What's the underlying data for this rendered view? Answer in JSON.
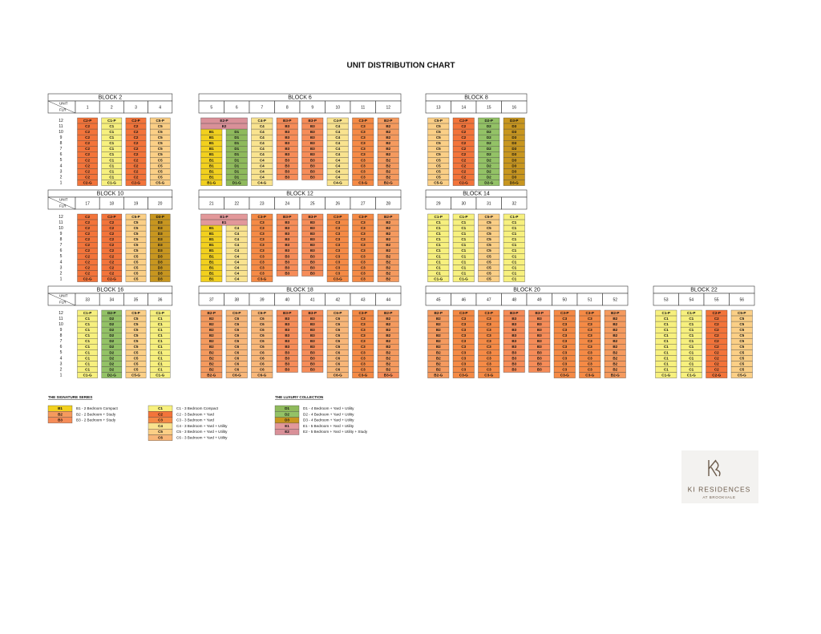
{
  "title": "UNIT DISTRIBUTION CHART",
  "header_labels": {
    "unit": "UNIT",
    "floor": "FLR"
  },
  "floors": [
    12,
    11,
    10,
    9,
    8,
    7,
    6,
    5,
    4,
    3,
    2,
    1
  ],
  "blocks": [
    {
      "name": "BLOCK 2",
      "stacks": [
        1,
        2,
        3,
        4
      ],
      "rows": [
        [
          "C2-P",
          "C1-P",
          "C2-P",
          "C5-P"
        ],
        [
          "C2",
          "C1",
          "C2",
          "C5"
        ],
        [
          "C2",
          "C1",
          "C2",
          "C5"
        ],
        [
          "C2",
          "C1",
          "C2",
          "C5"
        ],
        [
          "C2",
          "C1",
          "C2",
          "C5"
        ],
        [
          "C2",
          "C1",
          "C2",
          "C5"
        ],
        [
          "C2",
          "C1",
          "C2",
          "C5"
        ],
        [
          "C2",
          "C1",
          "C2",
          "C5"
        ],
        [
          "C2",
          "C1",
          "C2",
          "C5"
        ],
        [
          "C2",
          "C1",
          "C2",
          "C5"
        ],
        [
          "C2",
          "C1",
          "C2",
          "C5"
        ],
        [
          "C2-G",
          "C1-G",
          "C2-G",
          "C5-G"
        ]
      ]
    },
    {
      "name": "BLOCK 6",
      "stacks": [
        5,
        6,
        7,
        8,
        9,
        10,
        11,
        12
      ],
      "rows": [
        [
          {
            "label": "E2-P",
            "span": 2
          },
          "C4-P",
          "B3-P",
          "B3-P",
          "C4-P",
          "C3-P",
          "B2-P"
        ],
        [
          {
            "label": "E2",
            "span": 2
          },
          "C4",
          "B3",
          "B3",
          "C4",
          "C3",
          "B2"
        ],
        [
          "B1",
          "D1",
          "C4",
          "B3",
          "B3",
          "C4",
          "C3",
          "B2"
        ],
        [
          "B1",
          "D1",
          "C4",
          "B3",
          "B3",
          "C4",
          "C3",
          "B2"
        ],
        [
          "B1",
          "D1",
          "C4",
          "B3",
          "B3",
          "C4",
          "C3",
          "B2"
        ],
        [
          "B1",
          "D1",
          "C4",
          "B3",
          "B3",
          "C4",
          "C3",
          "B2"
        ],
        [
          "B1",
          "D1",
          "C4",
          "B3",
          "B3",
          "C4",
          "C3",
          "B2"
        ],
        [
          "B1",
          "D1",
          "C4",
          "B3",
          "B3",
          "C4",
          "C3",
          "B2"
        ],
        [
          "B1",
          "D1",
          "C4",
          "B3",
          "B3",
          "C4",
          "C3",
          "B2"
        ],
        [
          "B1",
          "D1",
          "C4",
          "B3",
          "B3",
          "C4",
          "C3",
          "B2"
        ],
        [
          "B1",
          "D1",
          "C4",
          "B3",
          "B3",
          "C4",
          "C3",
          "B2"
        ],
        [
          "B1-G",
          "D1-G",
          "C4-G",
          null,
          null,
          "C4-G",
          "C3-G",
          "B2-G"
        ]
      ]
    },
    {
      "name": "BLOCK 8",
      "stacks": [
        13,
        14,
        15,
        16
      ],
      "rows": [
        [
          "C5-P",
          "C2-P",
          "D2-P",
          "D3-P"
        ],
        [
          "C5",
          "C2",
          "D2",
          "D3"
        ],
        [
          "C5",
          "C2",
          "D2",
          "D3"
        ],
        [
          "C5",
          "C2",
          "D2",
          "D3"
        ],
        [
          "C5",
          "C2",
          "D2",
          "D3"
        ],
        [
          "C5",
          "C2",
          "D2",
          "D3"
        ],
        [
          "C5",
          "C2",
          "D2",
          "D3"
        ],
        [
          "C5",
          "C2",
          "D2",
          "D3"
        ],
        [
          "C5",
          "C2",
          "D2",
          "D3"
        ],
        [
          "C5",
          "C2",
          "D2",
          "D3"
        ],
        [
          "C5",
          "C2",
          "D2",
          "D3"
        ],
        [
          "C5-G",
          "C2-G",
          "D2-G",
          "D3-G"
        ]
      ]
    },
    {
      "name": "BLOCK 10",
      "stacks": [
        17,
        18,
        19,
        20
      ],
      "rows": [
        [
          "C2",
          "C2-P",
          "C5-P",
          "D3-P"
        ],
        [
          "C2",
          "C2",
          "C5",
          "D3"
        ],
        [
          "C2",
          "C2",
          "C5",
          "D3"
        ],
        [
          "C2",
          "C2",
          "C5",
          "D3"
        ],
        [
          "C2",
          "C2",
          "C5",
          "D3"
        ],
        [
          "C2",
          "C2",
          "C5",
          "D3"
        ],
        [
          "C2",
          "C2",
          "C5",
          "D3"
        ],
        [
          "C2",
          "C2",
          "C5",
          "D3"
        ],
        [
          "C2",
          "C2",
          "C5",
          "D3"
        ],
        [
          "C2",
          "C2",
          "C5",
          "D3"
        ],
        [
          "C2",
          "C2",
          "C5",
          "D3"
        ],
        [
          "C2-G",
          "C2-G",
          "C5",
          "D3"
        ]
      ]
    },
    {
      "name": "BLOCK 12",
      "stacks": [
        21,
        22,
        23,
        24,
        25,
        26,
        27,
        28
      ],
      "rows": [
        [
          {
            "label": "E1-P",
            "span": 2
          },
          "C3-P",
          "B3-P",
          "B3-P",
          "C3-P",
          "C3-P",
          "B2-P"
        ],
        [
          {
            "label": "E1",
            "span": 2
          },
          "C3",
          "B3",
          "B3",
          "C3",
          "C3",
          "B2"
        ],
        [
          "B1",
          "C4",
          "C3",
          "B3",
          "B3",
          "C3",
          "C3",
          "B2"
        ],
        [
          "B1",
          "C4",
          "C3",
          "B3",
          "B3",
          "C3",
          "C3",
          "B2"
        ],
        [
          "B1",
          "C4",
          "C3",
          "B3",
          "B3",
          "C3",
          "C3",
          "B2"
        ],
        [
          "B1",
          "C4",
          "C3",
          "B3",
          "B3",
          "C3",
          "C3",
          "B2"
        ],
        [
          "B1",
          "C4",
          "C3",
          "B3",
          "B3",
          "C3",
          "C3",
          "B2"
        ],
        [
          "B1",
          "C4",
          "C3",
          "B3",
          "B3",
          "C3",
          "C3",
          "B2"
        ],
        [
          "B1",
          "C4",
          "C3",
          "B3",
          "B3",
          "C3",
          "C3",
          "B2"
        ],
        [
          "B1",
          "C4",
          "C3",
          "B3",
          "B3",
          "C3",
          "C3",
          "B2"
        ],
        [
          "B1",
          "C4",
          "C3",
          "B3",
          "B3",
          "C3",
          "C3",
          "B2"
        ],
        [
          "B1",
          "C4",
          "C3-G",
          null,
          null,
          "C3-G",
          "C3",
          "B2"
        ]
      ]
    },
    {
      "name": "BLOCK 14",
      "stacks": [
        29,
        30,
        31,
        32
      ],
      "rows": [
        [
          "C1-P",
          "C1-P",
          "C5-P",
          "C1-P"
        ],
        [
          "C1",
          "C1",
          "C5",
          "C1"
        ],
        [
          "C1",
          "C1",
          "C5",
          "C1"
        ],
        [
          "C1",
          "C1",
          "C5",
          "C1"
        ],
        [
          "C1",
          "C1",
          "C5",
          "C1"
        ],
        [
          "C1",
          "C1",
          "C5",
          "C1"
        ],
        [
          "C1",
          "C1",
          "C5",
          "C1"
        ],
        [
          "C1",
          "C1",
          "C5",
          "C1"
        ],
        [
          "C1",
          "C1",
          "C5",
          "C1"
        ],
        [
          "C1",
          "C1",
          "C5",
          "C1"
        ],
        [
          "C1",
          "C1",
          "C5",
          "C1"
        ],
        [
          "C1-G",
          "C1-G",
          "C5",
          "C1"
        ]
      ]
    },
    {
      "name": "BLOCK 16",
      "stacks": [
        33,
        34,
        35,
        36
      ],
      "rows": [
        [
          "C1-P",
          "D2-P",
          "C5-P",
          "C1-P"
        ],
        [
          "C1",
          "D2",
          "C5",
          "C1"
        ],
        [
          "C1",
          "D2",
          "C5",
          "C1"
        ],
        [
          "C1",
          "D2",
          "C5",
          "C1"
        ],
        [
          "C1",
          "D2",
          "C5",
          "C1"
        ],
        [
          "C1",
          "D2",
          "C5",
          "C1"
        ],
        [
          "C1",
          "D2",
          "C5",
          "C1"
        ],
        [
          "C1",
          "D2",
          "C5",
          "C1"
        ],
        [
          "C1",
          "D2",
          "C5",
          "C1"
        ],
        [
          "C1",
          "D2",
          "C5",
          "C1"
        ],
        [
          "C1",
          "D2",
          "C5",
          "C1"
        ],
        [
          "C1-G",
          "D2-G",
          "C5-G",
          "C1-G"
        ]
      ]
    },
    {
      "name": "BLOCK 18",
      "stacks": [
        37,
        38,
        39,
        40,
        41,
        42,
        43,
        44
      ],
      "rows": [
        [
          "B2-P",
          "C6-P",
          "C6-P",
          "B3-P",
          "B3-P",
          "C6-P",
          "C3-P",
          "B2-P"
        ],
        [
          "B2",
          "C6",
          "C6",
          "B3",
          "B3",
          "C6",
          "C3",
          "B2"
        ],
        [
          "B2",
          "C6",
          "C6",
          "B3",
          "B3",
          "C6",
          "C3",
          "B2"
        ],
        [
          "B2",
          "C6",
          "C6",
          "B3",
          "B3",
          "C6",
          "C3",
          "B2"
        ],
        [
          "B2",
          "C6",
          "C6",
          "B3",
          "B3",
          "C6",
          "C3",
          "B2"
        ],
        [
          "B2",
          "C6",
          "C6",
          "B3",
          "B3",
          "C6",
          "C3",
          "B2"
        ],
        [
          "B2",
          "C6",
          "C6",
          "B3",
          "B3",
          "C6",
          "C3",
          "B2"
        ],
        [
          "B2",
          "C6",
          "C6",
          "B3",
          "B3",
          "C6",
          "C3",
          "B2"
        ],
        [
          "B2",
          "C6",
          "C6",
          "B3",
          "B3",
          "C6",
          "C3",
          "B2"
        ],
        [
          "B2",
          "C6",
          "C6",
          "B3",
          "B3",
          "C6",
          "C3",
          "B2"
        ],
        [
          "B2",
          "C6",
          "C6",
          "B3",
          "B3",
          "C6",
          "C3",
          "B2"
        ],
        [
          "B2-G",
          "C6-G",
          "C6-G",
          null,
          null,
          "C6-G",
          "C3-G",
          "B3-G"
        ]
      ]
    },
    {
      "name": "BLOCK 20",
      "stacks": [
        45,
        46,
        47,
        48,
        49,
        50,
        51,
        52
      ],
      "rows": [
        [
          "B2-P",
          "C3-P",
          "C3-P",
          "B3-P",
          "B3-P",
          "C3-P",
          "C3-P",
          "B2-P"
        ],
        [
          "B2",
          "C3",
          "C3",
          "B3",
          "B3",
          "C3",
          "C3",
          "B2"
        ],
        [
          "B2",
          "C3",
          "C3",
          "B3",
          "B3",
          "C3",
          "C3",
          "B2"
        ],
        [
          "B2",
          "C3",
          "C3",
          "B3",
          "B3",
          "C3",
          "C3",
          "B2"
        ],
        [
          "B2",
          "C3",
          "C3",
          "B3",
          "B3",
          "C3",
          "C3",
          "B2"
        ],
        [
          "B2",
          "C3",
          "C3",
          "B3",
          "B3",
          "C3",
          "C3",
          "B2"
        ],
        [
          "B2",
          "C3",
          "C3",
          "B3",
          "B3",
          "C3",
          "C3",
          "B2"
        ],
        [
          "B2",
          "C3",
          "C3",
          "B3",
          "B3",
          "C3",
          "C3",
          "B2"
        ],
        [
          "B2",
          "C3",
          "C3",
          "B3",
          "B3",
          "C3",
          "C3",
          "B2"
        ],
        [
          "B2",
          "C3",
          "C3",
          "B3",
          "B3",
          "C3",
          "C3",
          "B2"
        ],
        [
          "B2",
          "C3",
          "C3",
          "B3",
          "B3",
          "C3",
          "C3",
          "B2"
        ],
        [
          "B2-G",
          "C3-G",
          "C3-G",
          null,
          null,
          "C3-G",
          "C3-G",
          "B2-G"
        ]
      ]
    },
    {
      "name": "BLOCK 22",
      "stacks": [
        53,
        54,
        55,
        56
      ],
      "rows": [
        [
          "C1-P",
          "C1-P",
          "C2-P",
          "C5-P"
        ],
        [
          "C1",
          "C1",
          "C2",
          "C5"
        ],
        [
          "C1",
          "C1",
          "C2",
          "C5"
        ],
        [
          "C1",
          "C1",
          "C2",
          "C5"
        ],
        [
          "C1",
          "C1",
          "C2",
          "C5"
        ],
        [
          "C1",
          "C1",
          "C2",
          "C5"
        ],
        [
          "C1",
          "C1",
          "C2",
          "C5"
        ],
        [
          "C1",
          "C1",
          "C2",
          "C5"
        ],
        [
          "C1",
          "C1",
          "C2",
          "C5"
        ],
        [
          "C1",
          "C1",
          "C2",
          "C5"
        ],
        [
          "C1",
          "C1",
          "C2",
          "C5"
        ],
        [
          "C1-G",
          "C1-G",
          "C2-G",
          "C5-G"
        ]
      ]
    }
  ],
  "legend": [
    {
      "title": "THE SIGNATURE SERIES",
      "groups": [
        [
          {
            "code": "B1",
            "description": "B1 - 2 Bedroom Compact",
            "color": "#f2d01e"
          },
          {
            "code": "B2",
            "description": "B2 - 2 Bedroom + Study",
            "color": "#f59a5e"
          },
          {
            "code": "B3",
            "description": "B3 - 2 Bedroom + Study",
            "color": "#f68c58"
          }
        ],
        [
          {
            "code": "C1",
            "description": "C1 - 3 Bedroom Compact",
            "color": "#f7f07e"
          },
          {
            "code": "C2",
            "description": "C2 - 3 Bedroom + Yard",
            "color": "#f3743a"
          },
          {
            "code": "C3",
            "description": "C3 - 3 Bedroom + Yard",
            "color": "#f58a45"
          },
          {
            "code": "C4",
            "description": "C4 - 3 Bedroom + Yard + Utility",
            "color": "#f9e38f"
          },
          {
            "code": "C5",
            "description": "C5 - 3 Bedroom + Yard + Utility",
            "color": "#fbcf86"
          },
          {
            "code": "C6",
            "description": "C6 - 3 Bedroom + Yard + Utility",
            "color": "#f8b678"
          }
        ]
      ]
    },
    {
      "title": "THE LUXURY COLLECTION",
      "groups": [
        [
          {
            "code": "D1",
            "description": "D1 - 4 Bedroom + Yard + Utility",
            "color": "#8fba5c"
          },
          {
            "code": "D2",
            "description": "D2 - 4 Bedroom + Yard + Utility",
            "color": "#93c266"
          },
          {
            "code": "D3",
            "description": "D3 - 4 Bedroom + Yard + Utility",
            "color": "#c8961f"
          },
          {
            "code": "E1",
            "description": "E1 - 5 Bedroom + Yard + Utility",
            "color": "#e2989a"
          },
          {
            "code": "E2",
            "description": "E2 - 5 Bedroom + Yard + Utility + Study",
            "color": "#d99098"
          }
        ]
      ]
    }
  ],
  "logo": {
    "name": "KI RESIDENCES",
    "tagline": "AT BROOKVALE"
  }
}
